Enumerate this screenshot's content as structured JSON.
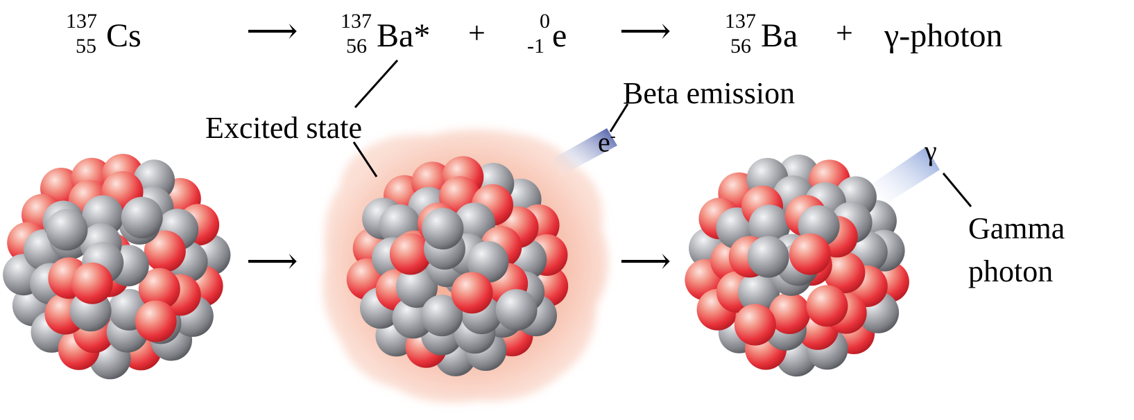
{
  "equation": {
    "reactant": {
      "symbol": "Cs",
      "mass": "137",
      "atomic_number": "55"
    },
    "arrow_1": "⟶",
    "excited_product": {
      "symbol": "Ba*",
      "mass": "137",
      "atomic_number": "56"
    },
    "plus_1": "+",
    "electron": {
      "symbol": "e",
      "mass": "0",
      "charge": "-1"
    },
    "arrow_2": "⟶",
    "final_product": {
      "symbol": "Ba",
      "mass": "137",
      "atomic_number": "56"
    },
    "plus_2": "+",
    "gamma": "γ-photon"
  },
  "labels": {
    "excited_state": "Excited state",
    "beta_emission": "Beta emission",
    "electron_symbol": "e",
    "electron_superscript": "-",
    "gamma_symbol": "γ",
    "gamma_photon_line1": "Gamma",
    "gamma_photon_line2": "photon"
  },
  "process_arrows": [
    "⟶",
    "⟶"
  ],
  "colors": {
    "proton": "#e8323a",
    "neutron": "#7d7f85",
    "excited_glow": "#f5b5a0",
    "beta_beam": "#3b4da0",
    "gamma_beam": "#7f9ad6"
  }
}
